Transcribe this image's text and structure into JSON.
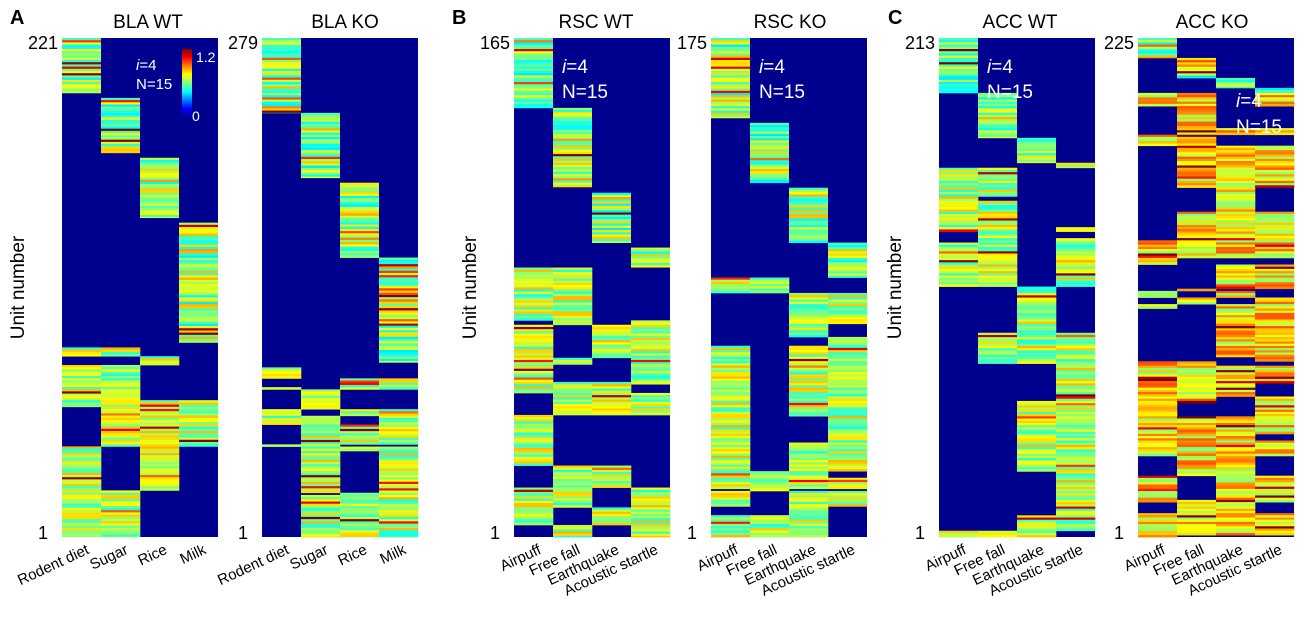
{
  "figure": {
    "panel_letters": [
      "A",
      "B",
      "C"
    ],
    "colorbar": {
      "max_label": "1.2",
      "min_label": "0",
      "colormap": "jet"
    },
    "colors": {
      "background": "#00008f",
      "text_on_map": "#ffffff"
    }
  },
  "chart_data": [
    {
      "type": "heatmap",
      "panel": "A",
      "title": "BLA WT",
      "ylabel": "Unit number",
      "y_top_label": "221",
      "y_bottom_label": "1",
      "ylim": [
        1,
        221
      ],
      "categories": [
        "Rodent diet",
        "Sugar",
        "Rice",
        "Milk"
      ],
      "annotation": {
        "i_label": "i",
        "i_value": "=4",
        "n_label": "N=15"
      },
      "annotation_style": "small",
      "clusters": [
        {
          "category": 0,
          "start": 0.0,
          "end": 0.11
        },
        {
          "category": 1,
          "start": 0.12,
          "end": 0.23
        },
        {
          "category": 2,
          "start": 0.24,
          "end": 0.36
        },
        {
          "category": 3,
          "start": 0.37,
          "end": 0.61
        }
      ],
      "mixed_region": [
        0.62,
        1.0
      ],
      "seed": 11
    },
    {
      "type": "heatmap",
      "panel": "A",
      "title": "BLA KO",
      "ylabel": "",
      "y_top_label": "279",
      "y_bottom_label": "1",
      "ylim": [
        1,
        279
      ],
      "categories": [
        "Rodent diet",
        "Sugar",
        "Rice",
        "Milk"
      ],
      "annotation": null,
      "clusters": [
        {
          "category": 0,
          "start": 0.0,
          "end": 0.15
        },
        {
          "category": 1,
          "start": 0.15,
          "end": 0.28
        },
        {
          "category": 2,
          "start": 0.29,
          "end": 0.44
        },
        {
          "category": 3,
          "start": 0.44,
          "end": 0.65
        }
      ],
      "mixed_region": [
        0.66,
        1.0
      ],
      "seed": 23
    },
    {
      "type": "heatmap",
      "panel": "B",
      "title": "RSC WT",
      "ylabel": "Unit number",
      "y_top_label": "165",
      "y_bottom_label": "1",
      "ylim": [
        1,
        165
      ],
      "categories": [
        "Airpuff",
        "Free fall",
        "Earthquake",
        "Acoustic startle"
      ],
      "annotation": {
        "i_label": "i",
        "i_value": "=4",
        "n_label": "N=15"
      },
      "annotation_style": "large",
      "clusters": [
        {
          "category": 0,
          "start": 0.0,
          "end": 0.14
        },
        {
          "category": 1,
          "start": 0.14,
          "end": 0.3
        },
        {
          "category": 2,
          "start": 0.31,
          "end": 0.41
        },
        {
          "category": 3,
          "start": 0.42,
          "end": 0.46
        }
      ],
      "mixed_region": [
        0.46,
        1.0
      ],
      "seed": 37
    },
    {
      "type": "heatmap",
      "panel": "B",
      "title": "RSC KO",
      "ylabel": "",
      "y_top_label": "175",
      "y_bottom_label": "1",
      "ylim": [
        1,
        175
      ],
      "categories": [
        "Airpuff",
        "Free fall",
        "Earthquake",
        "Acoustic startle"
      ],
      "annotation": {
        "i_label": "i",
        "i_value": "=4",
        "n_label": "N=15"
      },
      "annotation_style": "large",
      "clusters": [
        {
          "category": 0,
          "start": 0.0,
          "end": 0.16
        },
        {
          "category": 1,
          "start": 0.17,
          "end": 0.29
        },
        {
          "category": 2,
          "start": 0.3,
          "end": 0.41
        },
        {
          "category": 3,
          "start": 0.41,
          "end": 0.48
        }
      ],
      "mixed_region": [
        0.48,
        1.0
      ],
      "seed": 41
    },
    {
      "type": "heatmap",
      "panel": "C",
      "title": "ACC WT",
      "ylabel": "Unit number",
      "y_top_label": "213",
      "y_bottom_label": "1",
      "ylim": [
        1,
        213
      ],
      "categories": [
        "Airpuff",
        "Free fall",
        "Earthquake",
        "Acoustic startle"
      ],
      "annotation": {
        "i_label": "i",
        "i_value": "=4",
        "n_label": "N=15"
      },
      "annotation_style": "large",
      "clusters": [
        {
          "category": 0,
          "start": 0.0,
          "end": 0.11
        },
        {
          "category": 1,
          "start": 0.11,
          "end": 0.2
        },
        {
          "category": 2,
          "start": 0.2,
          "end": 0.25
        },
        {
          "category": 3,
          "start": 0.25,
          "end": 0.26
        }
      ],
      "mixed_region": [
        0.26,
        1.0
      ],
      "seed": 53
    },
    {
      "type": "heatmap",
      "panel": "C",
      "title": "ACC KO",
      "ylabel": "",
      "y_top_label": "225",
      "y_bottom_label": "1",
      "ylim": [
        1,
        225
      ],
      "categories": [
        "Airpuff",
        "Free fall",
        "Earthquake",
        "Acoustic startle"
      ],
      "annotation": {
        "i_label": "i",
        "i_value": "=4",
        "n_label": "N=15"
      },
      "annotation_style": "large-low",
      "clusters": [
        {
          "category": 0,
          "start": 0.0,
          "end": 0.04
        },
        {
          "category": 1,
          "start": 0.04,
          "end": 0.08
        },
        {
          "category": 2,
          "start": 0.08,
          "end": 0.1
        },
        {
          "category": 3,
          "start": 0.1,
          "end": 0.11
        }
      ],
      "mixed_region": [
        0.11,
        1.0
      ],
      "seed": 67
    }
  ]
}
